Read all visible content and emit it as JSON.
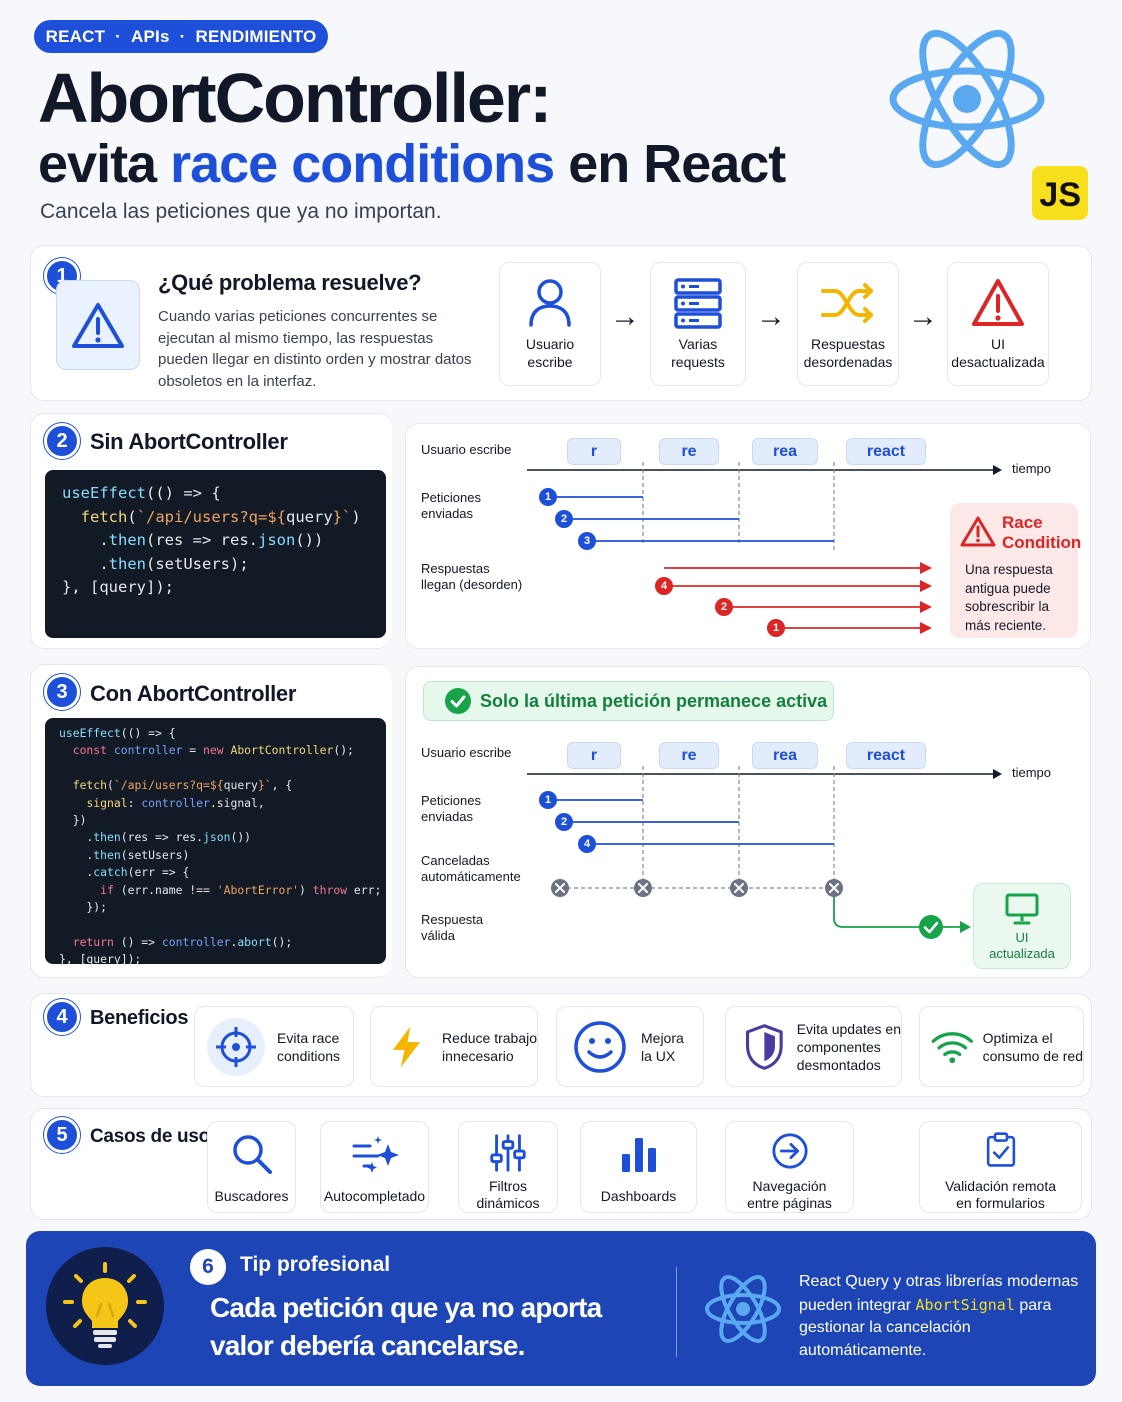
{
  "header": {
    "tags": [
      "REACT",
      "APIs",
      "RENDIMIENTO"
    ],
    "tag_separator": "·",
    "title_line1": "AbortController:",
    "title_line2_pre": "evita ",
    "title_line2_hl": "race conditions",
    "title_line2_post": " en React",
    "subtitle": "Cancela las peticiones que ya no importan.",
    "js_badge": "JS"
  },
  "s1": {
    "num": "1",
    "title": "¿Qué problema resuelve?",
    "desc": "Cuando varias peticiones concurrentes se ejecutan al mismo tiempo, las respuestas pueden llegar en distinto orden y mostrar datos obsoletos en la interfaz.",
    "flow": [
      {
        "icon": "user-icon",
        "label": "Usuario\nescribe"
      },
      {
        "icon": "server-icon",
        "label": "Varias\nrequests"
      },
      {
        "icon": "shuffle-icon",
        "label": "Respuestas\ndesordenadas"
      },
      {
        "icon": "warning-icon",
        "label": "UI\ndesactualizada"
      }
    ],
    "arrow": "→"
  },
  "s2": {
    "num": "2",
    "title": "Sin AbortController",
    "tl_user": "Usuario escribe",
    "tl_sent": "Peticiones\nenviadas",
    "tl_resp": "Respuestas\nllegan (desorden)",
    "tl_time": "tiempo",
    "chips": [
      "r",
      "re",
      "rea",
      "react"
    ],
    "sent_ids": [
      "1",
      "2",
      "3"
    ],
    "resp_ids": [
      "4",
      "2",
      "1"
    ],
    "race_title": "Race\nCondition",
    "race_desc": "Una respuesta\nantigua puede\nsobrescribir la\nmás reciente."
  },
  "s3": {
    "num": "3",
    "title": "Con AbortController",
    "banner": "Solo la última petición permanece activa",
    "tl_user": "Usuario escribe",
    "tl_sent": "Peticiones\nenviadas",
    "tl_cancel": "Canceladas\nautomáticamente",
    "tl_valid": "Respuesta\nválida",
    "tl_time": "tiempo",
    "chips": [
      "r",
      "re",
      "rea",
      "react"
    ],
    "sent_ids": [
      "1",
      "2",
      "4"
    ],
    "ui_label": "UI\nactualizada"
  },
  "s4": {
    "num": "4",
    "title": "Beneficios",
    "items": [
      {
        "icon": "crosshair-icon",
        "label": "Evita race\nconditions"
      },
      {
        "icon": "lightning-icon",
        "label": "Reduce trabajo\ninnecesario"
      },
      {
        "icon": "smile-icon",
        "label": "Mejora\nla UX"
      },
      {
        "icon": "shield-icon",
        "label": "Evita updates en\ncomponentes\ndesmontados"
      },
      {
        "icon": "wifi-icon",
        "label": "Optimiza el\nconsumo de red"
      }
    ]
  },
  "s5": {
    "num": "5",
    "title": "Casos de uso",
    "items": [
      {
        "icon": "search-icon",
        "label": "Buscadores"
      },
      {
        "icon": "sparkle-icon",
        "label": "Autocompletado"
      },
      {
        "icon": "sliders-icon",
        "label": "Filtros\ndinámicos"
      },
      {
        "icon": "bar-chart-icon",
        "label": "Dashboards"
      },
      {
        "icon": "arrow-circle-icon",
        "label": "Navegación\nentre páginas"
      },
      {
        "icon": "clipboard-check-icon",
        "label": "Validación remota\nen formularios"
      }
    ]
  },
  "tip": {
    "num": "6",
    "label": "Tip profesional",
    "main": "Cada petición que ya no aporta valor debería cancelarse.",
    "side_pre": "React Query y otras librerías modernas pueden integrar ",
    "side_hl": "AbortSignal",
    "side_post": " para gestionar la cancelación automáticamente."
  },
  "colors": {
    "brand_blue": "#1d4fd8",
    "danger_red": "#dc2626",
    "success_green": "#16a34a",
    "js_yellow": "#f7df1e",
    "footer_blue": "#1d45b5"
  }
}
